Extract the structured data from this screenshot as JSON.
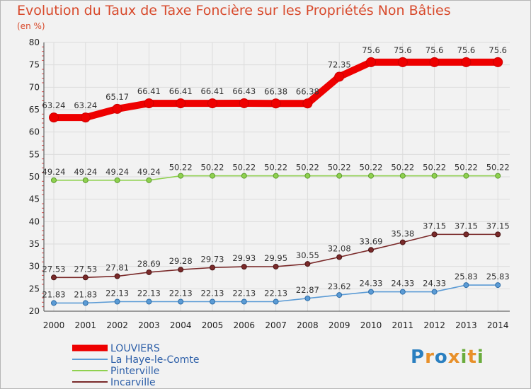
{
  "title": "Evolution du Taux de Taxe Foncière sur les Propriétés Non Bâties",
  "unit_label": "(en %)",
  "logo": {
    "text": "Proxiti",
    "letters": [
      {
        "ch": "P",
        "color": "#2a7fc0"
      },
      {
        "ch": "r",
        "color": "#e8902a"
      },
      {
        "ch": "o",
        "color": "#2a7fc0"
      },
      {
        "ch": "x",
        "color": "#e8902a"
      },
      {
        "ch": "i",
        "color": "#6aac3c"
      },
      {
        "ch": "t",
        "color": "#e8902a"
      },
      {
        "ch": "i",
        "color": "#6aac3c"
      }
    ]
  },
  "chart_data": {
    "type": "line",
    "title": "Evolution du Taux de Taxe Foncière sur les Propriétés Non Bâties",
    "xlabel": "",
    "ylabel": "(en %)",
    "ylim": [
      20,
      80
    ],
    "yticks": [
      20,
      25,
      30,
      35,
      40,
      45,
      50,
      55,
      60,
      65,
      70,
      75,
      80
    ],
    "grid": true,
    "legend_position": "bottom-left",
    "categories": [
      "2000",
      "2001",
      "2002",
      "2003",
      "2004",
      "2005",
      "2006",
      "2007",
      "2008",
      "2009",
      "2010",
      "2011",
      "2012",
      "2013",
      "2014"
    ],
    "series": [
      {
        "name": "LOUVIERS",
        "color": "#ee0000",
        "values": [
          63.24,
          63.24,
          65.17,
          66.41,
          66.41,
          66.41,
          66.43,
          66.38,
          66.38,
          72.35,
          75.6,
          75.6,
          75.6,
          75.6,
          75.6
        ],
        "labels": [
          "63.24",
          "63.24",
          "65.17",
          "66.41",
          "66.41",
          "66.41",
          "66.43",
          "66.38",
          "66.38",
          "72.35",
          "75.6",
          "75.6",
          "75.6",
          "75.6",
          "75.6"
        ]
      },
      {
        "name": "La Haye-le-Comte",
        "color": "#5b9bd5",
        "values": [
          21.83,
          21.83,
          22.13,
          22.13,
          22.13,
          22.13,
          22.13,
          22.13,
          22.87,
          23.62,
          24.33,
          24.33,
          24.33,
          25.83,
          25.83
        ],
        "labels": [
          "21.83",
          "21.83",
          "22.13",
          "22.13",
          "22.13",
          "22.13",
          "22.13",
          "22.13",
          "22.87",
          "23.62",
          "24.33",
          "24.33",
          "24.33",
          "25.83",
          "25.83"
        ]
      },
      {
        "name": "Pinterville",
        "color": "#8fd14f",
        "values": [
          49.24,
          49.24,
          49.24,
          49.24,
          50.22,
          50.22,
          50.22,
          50.22,
          50.22,
          50.22,
          50.22,
          50.22,
          50.22,
          50.22,
          50.22
        ],
        "labels": [
          "49.24",
          "49.24",
          "49.24",
          "49.24",
          "50.22",
          "50.22",
          "50.22",
          "50.22",
          "50.22",
          "50.22",
          "50.22",
          "50.22",
          "50.22",
          "50.22",
          "50.22"
        ]
      },
      {
        "name": "Incarville",
        "color": "#7a2a2a",
        "values": [
          27.53,
          27.53,
          27.81,
          28.69,
          29.28,
          29.73,
          29.93,
          29.95,
          30.55,
          32.08,
          33.69,
          35.38,
          37.15,
          37.15,
          37.15
        ],
        "labels": [
          "27.53",
          "27.53",
          "27.81",
          "28.69",
          "29.28",
          "29.73",
          "29.93",
          "29.95",
          "30.55",
          "32.08",
          "33.69",
          "35.38",
          "37.15",
          "37.15",
          "37.15"
        ]
      }
    ]
  }
}
